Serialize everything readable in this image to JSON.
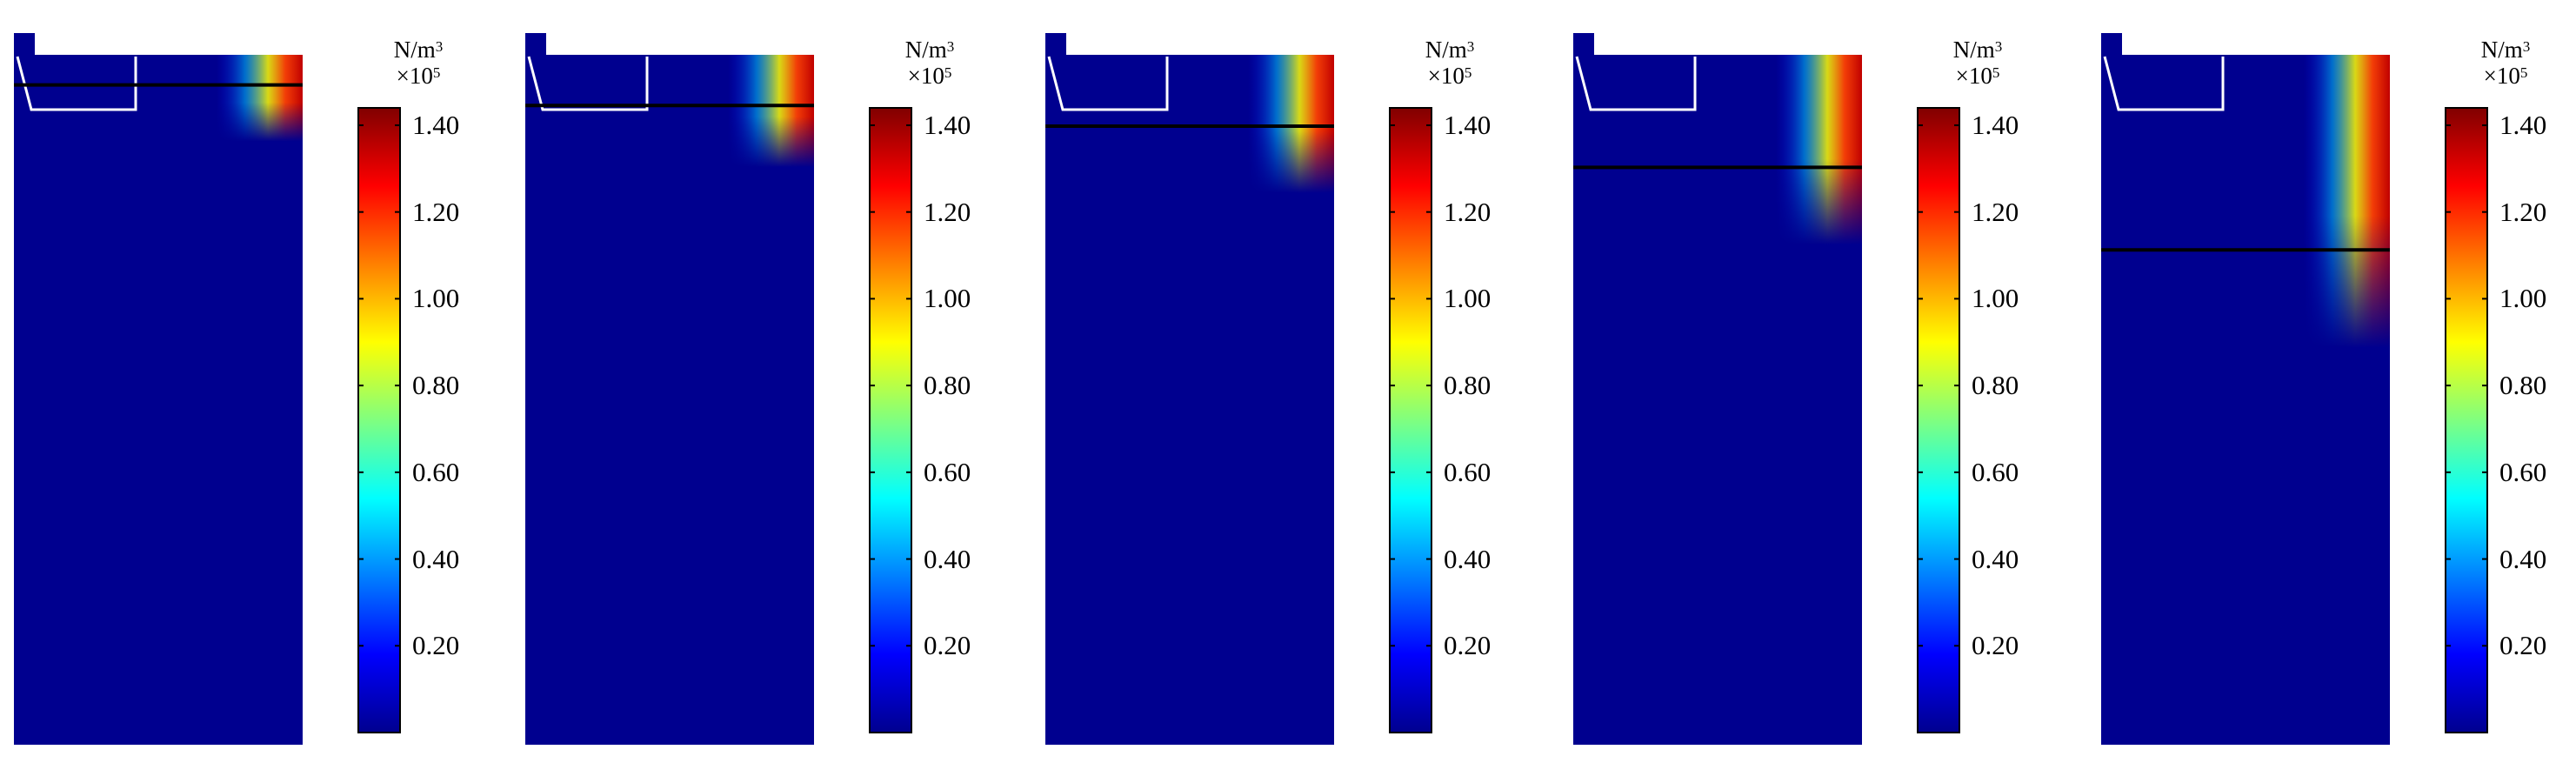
{
  "chart_data": [
    {
      "type": "heatmap",
      "colormap": "jet",
      "colorbar": {
        "unit_base": "N/m",
        "unit_exp": "3",
        "scale_base": "×10",
        "scale_exp": "5",
        "range": [
          0,
          1.44
        ],
        "ticks": [
          1.4,
          1.2,
          1.0,
          0.8,
          0.6,
          0.4,
          0.2
        ],
        "tick_labels": [
          "1.40",
          "1.20",
          "1.00",
          "0.80",
          "0.60",
          "0.40",
          "0.20"
        ]
      },
      "black_line_level": 0.96,
      "peak_value": 1.4
    },
    {
      "type": "heatmap",
      "colormap": "jet",
      "colorbar": {
        "unit_base": "N/m",
        "unit_exp": "3",
        "scale_base": "×10",
        "scale_exp": "5",
        "range": [
          0,
          1.44
        ],
        "ticks": [
          1.4,
          1.2,
          1.0,
          0.8,
          0.6,
          0.4,
          0.2
        ],
        "tick_labels": [
          "1.40",
          "1.20",
          "1.00",
          "0.80",
          "0.60",
          "0.40",
          "0.20"
        ]
      },
      "black_line_level": 0.93,
      "peak_value": 1.4
    },
    {
      "type": "heatmap",
      "colormap": "jet",
      "colorbar": {
        "unit_base": "N/m",
        "unit_exp": "3",
        "scale_base": "×10",
        "scale_exp": "5",
        "range": [
          0,
          1.44
        ],
        "ticks": [
          1.4,
          1.2,
          1.0,
          0.8,
          0.6,
          0.4,
          0.2
        ],
        "tick_labels": [
          "1.40",
          "1.20",
          "1.00",
          "0.80",
          "0.60",
          "0.40",
          "0.20"
        ]
      },
      "black_line_level": 0.9,
      "peak_value": 1.4
    },
    {
      "type": "heatmap",
      "colormap": "jet",
      "colorbar": {
        "unit_base": "N/m",
        "unit_exp": "3",
        "scale_base": "×10",
        "scale_exp": "5",
        "range": [
          0,
          1.44
        ],
        "ticks": [
          1.4,
          1.2,
          1.0,
          0.8,
          0.6,
          0.4,
          0.2
        ],
        "tick_labels": [
          "1.40",
          "1.20",
          "1.00",
          "0.80",
          "0.60",
          "0.40",
          "0.20"
        ]
      },
      "black_line_level": 0.84,
      "peak_value": 1.4
    },
    {
      "type": "heatmap",
      "colormap": "jet",
      "colorbar": {
        "unit_base": "N/m",
        "unit_exp": "3",
        "scale_base": "×10",
        "scale_exp": "5",
        "range": [
          0,
          1.44
        ],
        "ticks": [
          1.4,
          1.2,
          1.0,
          0.8,
          0.6,
          0.4,
          0.2
        ],
        "tick_labels": [
          "1.40",
          "1.20",
          "1.00",
          "0.80",
          "0.60",
          "0.40",
          "0.20"
        ]
      },
      "black_line_level": 0.72,
      "peak_value": 1.4
    }
  ],
  "colors": {
    "background_field": "#00008f",
    "line": "#000000",
    "outline": "#ffffff"
  }
}
